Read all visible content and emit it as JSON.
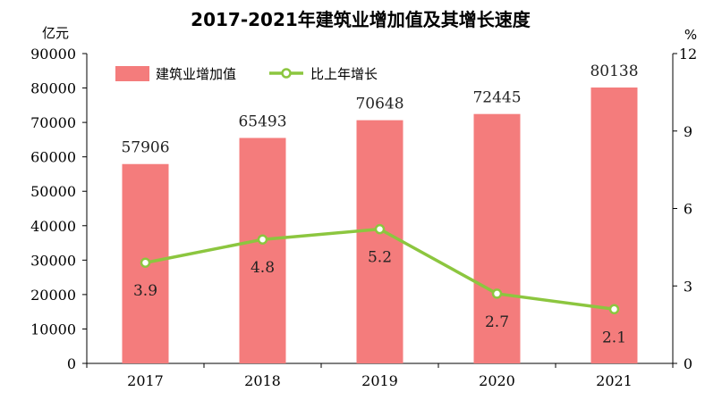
{
  "chart_data": {
    "type": "bar",
    "title": "2017-2021年建筑业增加值及其增长速度",
    "left_axis_unit": "亿元",
    "right_axis_unit": "%",
    "categories": [
      "2017",
      "2018",
      "2019",
      "2020",
      "2021"
    ],
    "left_ylim": [
      0,
      90000
    ],
    "left_ticks": [
      0,
      10000,
      20000,
      30000,
      40000,
      50000,
      60000,
      70000,
      80000,
      90000
    ],
    "right_ylim": [
      0,
      12
    ],
    "right_ticks": [
      0,
      3,
      6,
      9,
      12
    ],
    "legend_placement": "top-left",
    "grid": false,
    "series": [
      {
        "name": "建筑业增加值",
        "type": "bar",
        "axis": "left",
        "color": "#f47c7c",
        "values": [
          57906,
          65493,
          70648,
          72445,
          80138
        ]
      },
      {
        "name": "比上年增长",
        "type": "line",
        "axis": "right",
        "color": "#8cc63f",
        "values": [
          3.9,
          4.8,
          5.2,
          2.7,
          2.1
        ]
      }
    ]
  }
}
